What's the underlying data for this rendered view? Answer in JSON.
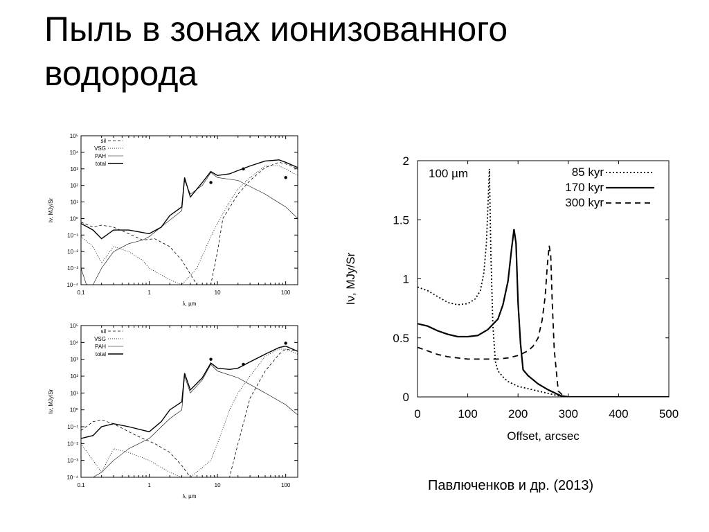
{
  "slide": {
    "title_line1": "Пыль в зонах ионизованного",
    "title_line2": "водорода",
    "caption": "Павлюченков и др. (2013)"
  },
  "chart_data": [
    {
      "type": "line",
      "log_x": true,
      "log_y": true,
      "xlabel": "λ, µm",
      "ylabel": "Iν, MJy/Sr",
      "xlim": [
        0.1,
        150
      ],
      "ylim": [
        0.0001,
        100000
      ],
      "x_ticks": [
        "0.1",
        "1",
        "10",
        "100"
      ],
      "y_ticks": [
        "10⁻⁴",
        "10⁻³",
        "10⁻²",
        "10⁻¹",
        "10⁰",
        "10¹",
        "10²",
        "10³",
        "10⁴",
        "10⁵"
      ],
      "legend_position": "top-left",
      "series": [
        {
          "name": "sil",
          "style": "dashed",
          "x": [
            0.1,
            0.15,
            0.2,
            0.3,
            0.5,
            0.8,
            1.2,
            2,
            3,
            5,
            8,
            10,
            12,
            20,
            30,
            50,
            80,
            100,
            150
          ],
          "y": [
            0.6,
            0.3,
            0.4,
            0.3,
            0.12,
            0.05,
            0.06,
            0.02,
            0.003,
            0.0001,
            0.0001,
            0.01,
            1,
            30,
            200,
            1200,
            2500,
            2000,
            1000
          ]
        },
        {
          "name": "VSG",
          "style": "dotted",
          "x": [
            0.1,
            0.15,
            0.2,
            0.3,
            0.5,
            0.8,
            1,
            2,
            3,
            5,
            8,
            10,
            15,
            20,
            30,
            50,
            80,
            100,
            150
          ],
          "y": [
            0.08,
            0.02,
            0.002,
            0.02,
            0.01,
            0.003,
            0.001,
            0.0002,
            0.0001,
            0.001,
            0.08,
            0.5,
            10,
            60,
            300,
            1500,
            1500,
            1000,
            400
          ]
        },
        {
          "name": "PAH",
          "style": "thin",
          "x": [
            0.1,
            0.12,
            0.15,
            0.2,
            0.3,
            0.5,
            0.8,
            1,
            2,
            3,
            3.3,
            4,
            6,
            8,
            10,
            20,
            50,
            100,
            150
          ],
          "y": [
            0.001,
            0.0001,
            0.0001,
            0.001,
            0.01,
            0.03,
            0.05,
            0.08,
            0.8,
            3,
            200,
            30,
            100,
            600,
            300,
            200,
            30,
            5,
            1
          ]
        },
        {
          "name": "total",
          "style": "solid",
          "x": [
            0.1,
            0.15,
            0.2,
            0.3,
            0.5,
            1,
            1.5,
            2,
            3,
            3.3,
            4,
            6,
            8,
            10,
            15,
            20,
            30,
            50,
            80,
            100,
            150
          ],
          "y": [
            0.5,
            0.2,
            0.06,
            0.2,
            0.2,
            0.12,
            0.3,
            1.5,
            5,
            300,
            20,
            150,
            700,
            400,
            500,
            800,
            1500,
            3000,
            3500,
            2500,
            1200
          ]
        },
        {
          "name": "obs",
          "style": "points",
          "x": [
            8,
            24,
            100
          ],
          "y": [
            150,
            1000,
            300
          ]
        }
      ]
    },
    {
      "type": "line",
      "log_x": true,
      "log_y": true,
      "xlabel": "λ, µm",
      "ylabel": "Iν, MJy/Sr",
      "xlim": [
        0.1,
        150
      ],
      "ylim": [
        0.0001,
        100000
      ],
      "x_ticks": [
        "0.1",
        "1",
        "10",
        "100"
      ],
      "y_ticks": [
        "10⁻⁴",
        "10⁻³",
        "10⁻²",
        "10⁻¹",
        "10⁰",
        "10¹",
        "10²",
        "10³",
        "10⁴",
        "10⁵"
      ],
      "legend_position": "top-right",
      "series": [
        {
          "name": "sil",
          "style": "dashed",
          "x": [
            0.1,
            0.15,
            0.2,
            0.3,
            0.5,
            0.8,
            1.2,
            2,
            3,
            4,
            10,
            15,
            20,
            30,
            50,
            80,
            100,
            150
          ],
          "y": [
            0.06,
            0.2,
            0.25,
            0.15,
            0.05,
            0.02,
            0.01,
            0.003,
            0.0005,
            0.0001,
            0.0001,
            0.0001,
            0.01,
            5,
            200,
            2000,
            4000,
            3000
          ]
        },
        {
          "name": "VSG",
          "style": "dotted",
          "x": [
            0.1,
            0.15,
            0.2,
            0.3,
            0.5,
            1,
            2,
            3,
            4,
            8,
            10,
            15,
            20,
            30,
            50,
            80,
            100,
            150
          ],
          "y": [
            0.01,
            0.001,
            0.0002,
            0.005,
            0.003,
            0.001,
            0.0002,
            0.0001,
            0.0001,
            0.001,
            0.01,
            1,
            10,
            100,
            1500,
            4000,
            4000,
            2000
          ]
        },
        {
          "name": "PAH",
          "style": "thin",
          "x": [
            0.1,
            0.15,
            0.2,
            0.3,
            0.5,
            1,
            2,
            3,
            3.3,
            4,
            6,
            8,
            10,
            20,
            50,
            100,
            150
          ],
          "y": [
            0.0001,
            0.0001,
            0.0002,
            0.001,
            0.005,
            0.02,
            0.3,
            1,
            100,
            10,
            60,
            500,
            200,
            80,
            10,
            2,
            0.5
          ]
        },
        {
          "name": "total",
          "style": "solid",
          "x": [
            0.1,
            0.15,
            0.2,
            0.3,
            0.5,
            1,
            1.5,
            2,
            3,
            3.3,
            4,
            6,
            8,
            10,
            15,
            20,
            30,
            50,
            80,
            100,
            150
          ],
          "y": [
            0.02,
            0.03,
            0.1,
            0.15,
            0.1,
            0.05,
            0.2,
            1,
            3,
            150,
            15,
            80,
            600,
            300,
            250,
            300,
            700,
            2000,
            5000,
            6000,
            3000
          ]
        },
        {
          "name": "obs",
          "style": "points",
          "x": [
            8,
            24,
            100
          ],
          "y": [
            1000,
            500,
            9000
          ]
        }
      ]
    },
    {
      "type": "line",
      "xlabel": "Offset, arcsec",
      "ylabel": "Iν, MJy/Sr",
      "annotation": "100 µm",
      "xlim": [
        0,
        500
      ],
      "ylim": [
        0,
        2
      ],
      "x_ticks": [
        "0",
        "100",
        "200",
        "300",
        "400",
        "500"
      ],
      "y_ticks": [
        "0",
        "0.5",
        "1",
        "1.5",
        "2"
      ],
      "legend_position": "top-right",
      "series": [
        {
          "name": "85 kyr",
          "style": "dotted",
          "x": [
            0,
            20,
            40,
            60,
            80,
            100,
            115,
            125,
            132,
            137,
            140,
            143,
            146,
            150,
            155,
            160,
            170,
            180,
            200,
            220,
            240,
            260,
            280,
            290,
            300,
            400,
            500
          ],
          "y": [
            0.93,
            0.9,
            0.85,
            0.8,
            0.78,
            0.79,
            0.83,
            0.9,
            1.05,
            1.3,
            1.6,
            1.93,
            1.2,
            0.6,
            0.3,
            0.22,
            0.17,
            0.13,
            0.09,
            0.07,
            0.05,
            0.03,
            0.01,
            0,
            0,
            0,
            0
          ]
        },
        {
          "name": "170 kyr",
          "style": "solid",
          "x": [
            0,
            20,
            40,
            60,
            80,
            100,
            120,
            140,
            160,
            170,
            180,
            187,
            192,
            196,
            200,
            205,
            210,
            220,
            240,
            260,
            275,
            285,
            300,
            400,
            500
          ],
          "y": [
            0.62,
            0.6,
            0.56,
            0.53,
            0.51,
            0.51,
            0.52,
            0.57,
            0.66,
            0.78,
            0.98,
            1.25,
            1.42,
            1.3,
            0.8,
            0.45,
            0.23,
            0.18,
            0.11,
            0.06,
            0.03,
            0.01,
            0,
            0,
            0
          ]
        },
        {
          "name": "300 kyr",
          "style": "dashed",
          "x": [
            0,
            20,
            40,
            60,
            80,
            100,
            120,
            140,
            160,
            180,
            200,
            220,
            230,
            240,
            248,
            254,
            258,
            262,
            265,
            268,
            272,
            280,
            290,
            300,
            400,
            500
          ],
          "y": [
            0.42,
            0.39,
            0.36,
            0.34,
            0.33,
            0.32,
            0.32,
            0.32,
            0.32,
            0.33,
            0.35,
            0.39,
            0.43,
            0.5,
            0.65,
            0.85,
            1.1,
            1.28,
            1.2,
            0.8,
            0.4,
            0.05,
            0.01,
            0,
            0,
            0
          ]
        }
      ]
    }
  ]
}
